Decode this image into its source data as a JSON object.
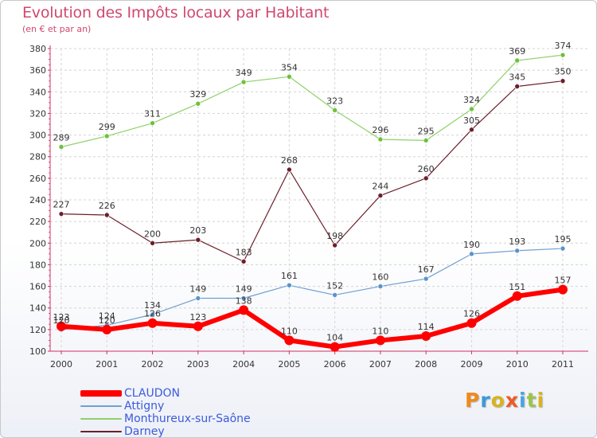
{
  "chart_data": {
    "type": "line",
    "title": "Evolution des Impôts locaux par Habitant",
    "subtitle": "(en € et par an)",
    "xlabel": "",
    "ylabel": "",
    "categories": [
      "2000",
      "2001",
      "2002",
      "2003",
      "2004",
      "2005",
      "2006",
      "2007",
      "2008",
      "2009",
      "2010",
      "2011"
    ],
    "ylim": [
      100,
      380
    ],
    "yticks": [
      100,
      120,
      140,
      160,
      180,
      200,
      220,
      240,
      260,
      280,
      300,
      320,
      340,
      360,
      380
    ],
    "grid": true,
    "legend_position": "bottom-left",
    "series": [
      {
        "name": "Monthureux-sur-Saône",
        "color": "#8fd06a",
        "marker": "#6cc23a",
        "width": 1.2,
        "values": [
          289,
          299,
          311,
          329,
          349,
          354,
          323,
          296,
          295,
          324,
          369,
          374
        ]
      },
      {
        "name": "Darney",
        "color": "#6b1f2a",
        "marker": "#6b1f2a",
        "width": 1.2,
        "values": [
          227,
          226,
          200,
          203,
          183,
          268,
          198,
          244,
          260,
          305,
          345,
          350
        ]
      },
      {
        "name": "Attigny",
        "color": "#6fa0d0",
        "marker": "#5a93cc",
        "width": 1.2,
        "values": [
          120,
          124,
          134,
          149,
          149,
          161,
          152,
          160,
          167,
          190,
          193,
          195
        ]
      },
      {
        "name": "CLAUDON",
        "color": "#ff0000",
        "marker": "#ff0000",
        "width": 6,
        "values": [
          123,
          120,
          126,
          123,
          138,
          110,
          104,
          110,
          114,
          126,
          151,
          157
        ]
      }
    ],
    "legend_order": [
      "CLAUDON",
      "Attigny",
      "Monthureux-sur-Saône",
      "Darney"
    ]
  },
  "brand": {
    "text": "Proxiti",
    "colors": [
      "#f08a1c",
      "#3b9ad6",
      "#d8b41c",
      "#ee5a24",
      "#4aa3e0",
      "#9cc44a",
      "#d8b41c"
    ]
  }
}
